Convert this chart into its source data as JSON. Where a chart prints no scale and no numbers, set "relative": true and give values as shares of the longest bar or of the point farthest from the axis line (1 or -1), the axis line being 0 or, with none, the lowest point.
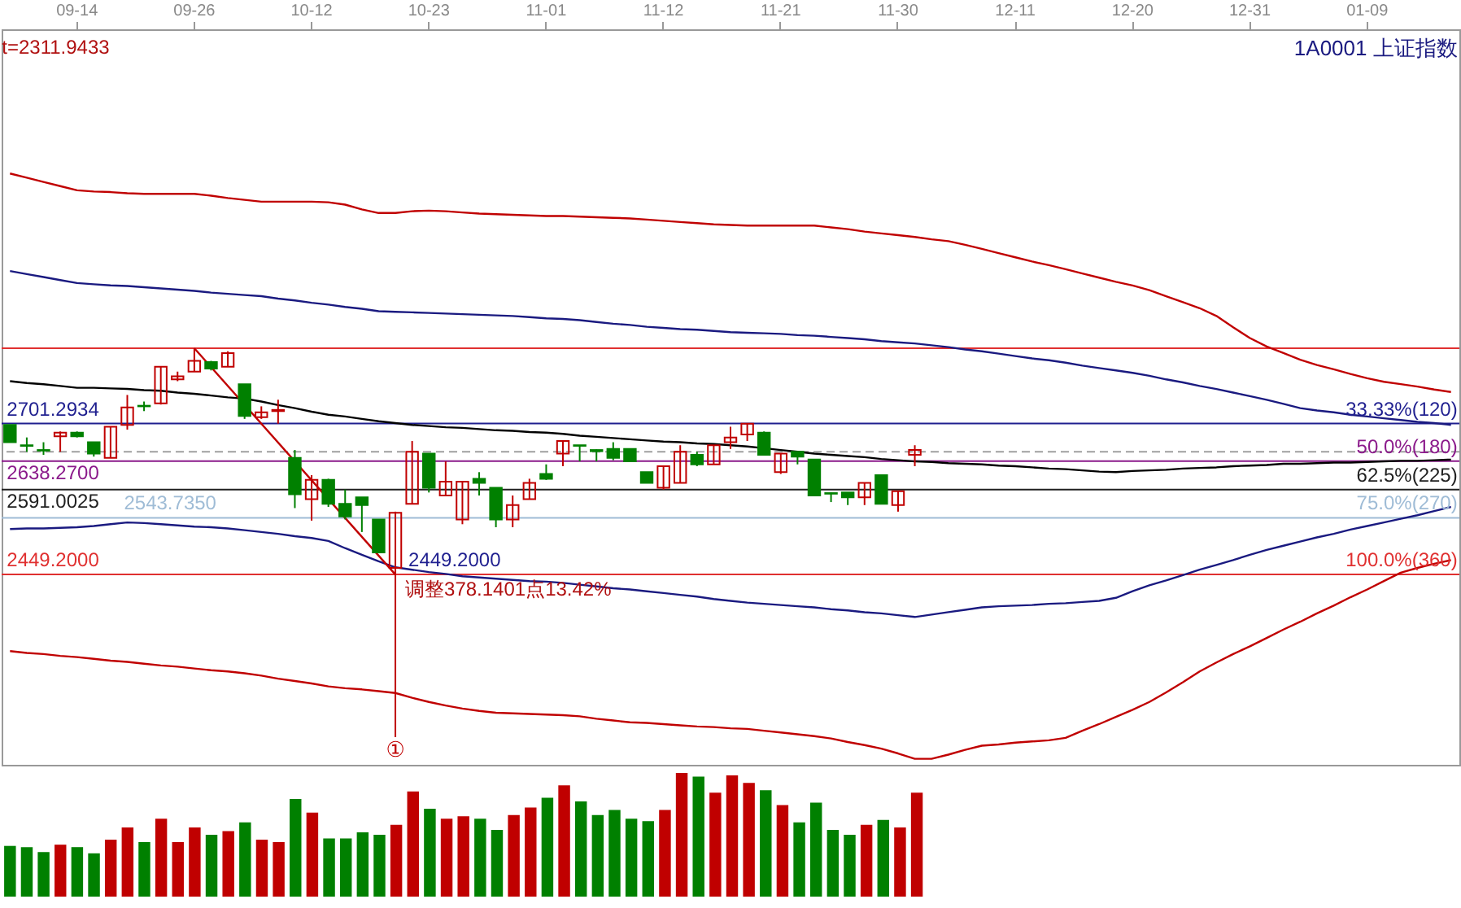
{
  "chart_data": [
    {
      "type": "candlestick",
      "title": "1A0001 上证指数",
      "categories": [
        null,
        null,
        null,
        null,
        "09-14",
        null,
        null,
        null,
        null,
        null,
        null,
        "09-26",
        null,
        null,
        null,
        null,
        null,
        null,
        "10-12",
        null,
        null,
        null,
        null,
        null,
        null,
        "10-23",
        null,
        null,
        null,
        null,
        null,
        null,
        "11-01",
        null,
        null,
        null,
        null,
        null,
        null,
        "11-12",
        null,
        null,
        null,
        null,
        null,
        null,
        "11-21",
        null,
        null,
        null,
        null,
        null,
        null,
        "11-30",
        null,
        null,
        null,
        null,
        null,
        null,
        "12-11",
        null,
        null,
        null,
        null,
        null,
        null,
        "12-20",
        null,
        null,
        null,
        null,
        null,
        null,
        "12-31",
        null,
        null,
        null,
        null,
        null,
        null,
        "01-09",
        null,
        null,
        null,
        null,
        null
      ],
      "ohlc": [
        [
          2699,
          2699,
          2670,
          2670
        ],
        [
          2665,
          2678,
          2654,
          2664
        ],
        [
          2657,
          2670,
          2649,
          2656
        ],
        [
          2680,
          2688,
          2654,
          2686
        ],
        [
          2686,
          2688,
          2678,
          2680
        ],
        [
          2670,
          2670,
          2646,
          2651
        ],
        [
          2644,
          2696,
          2644,
          2696
        ],
        [
          2699,
          2749,
          2691,
          2728
        ],
        [
          2731,
          2738,
          2722,
          2730
        ],
        [
          2735,
          2796,
          2733,
          2796
        ],
        [
          2775,
          2788,
          2772,
          2780
        ],
        [
          2788,
          2827,
          2788,
          2806
        ],
        [
          2804,
          2806,
          2790,
          2793
        ],
        [
          2796,
          2822,
          2796,
          2819
        ],
        [
          2767,
          2767,
          2709,
          2714
        ],
        [
          2712,
          2730,
          2709,
          2720
        ],
        [
          2722,
          2741,
          2701,
          2724
        ],
        [
          2644,
          2657,
          2560,
          2583
        ],
        [
          2575,
          2615,
          2539,
          2607
        ],
        [
          2607,
          2609,
          2562,
          2567
        ],
        [
          2567,
          2591,
          2541,
          2546
        ],
        [
          2578,
          2578,
          2520,
          2565
        ],
        [
          2541,
          2541,
          2486,
          2486
        ],
        [
          2460,
          2554,
          2449,
          2552
        ],
        [
          2567,
          2672,
          2567,
          2654
        ],
        [
          2651,
          2651,
          2586,
          2594
        ],
        [
          2581,
          2638,
          2581,
          2604
        ],
        [
          2541,
          2604,
          2533,
          2604
        ],
        [
          2609,
          2620,
          2581,
          2602
        ],
        [
          2594,
          2594,
          2528,
          2541
        ],
        [
          2541,
          2581,
          2528,
          2565
        ],
        [
          2575,
          2609,
          2575,
          2602
        ],
        [
          2617,
          2633,
          2607,
          2609
        ],
        [
          2651,
          2672,
          2630,
          2672
        ],
        [
          2665,
          2665,
          2638,
          2664
        ],
        [
          2657,
          2658,
          2638,
          2655
        ],
        [
          2659,
          2670,
          2640,
          2644
        ],
        [
          2659,
          2659,
          2638,
          2638
        ],
        [
          2620,
          2620,
          2602,
          2602
        ],
        [
          2594,
          2630,
          2591,
          2630
        ],
        [
          2602,
          2665,
          2602,
          2654
        ],
        [
          2649,
          2654,
          2630,
          2633
        ],
        [
          2633,
          2665,
          2633,
          2665
        ],
        [
          2670,
          2696,
          2659,
          2678
        ],
        [
          2683,
          2701,
          2672,
          2701
        ],
        [
          2686,
          2688,
          2649,
          2649
        ],
        [
          2620,
          2651,
          2617,
          2651
        ],
        [
          2654,
          2654,
          2633,
          2646
        ],
        [
          2641,
          2641,
          2581,
          2581
        ],
        [
          2585,
          2586,
          2570,
          2584
        ],
        [
          2586,
          2586,
          2565,
          2578
        ],
        [
          2578,
          2602,
          2565,
          2602
        ],
        [
          2615,
          2615,
          2567,
          2567
        ],
        [
          2565,
          2588,
          2554,
          2588
        ],
        [
          2649,
          2665,
          2630,
          2657
        ],
        null,
        null,
        null,
        null,
        null,
        null,
        null,
        null,
        null,
        null,
        null,
        null,
        null,
        null,
        null,
        null,
        null,
        null,
        null,
        null,
        null,
        null,
        null,
        null,
        null,
        null,
        null,
        null,
        null,
        null,
        null,
        null
      ],
      "colors": [
        "#008000",
        "#008000",
        "#008000",
        "#c00000",
        "#008000",
        "#008000",
        "#c00000",
        "#c00000",
        "#008000",
        "#c00000",
        "#c00000",
        "#c00000",
        "#008000",
        "#c00000",
        "#008000",
        "#c00000",
        "#c00000",
        "#008000",
        "#c00000",
        "#008000",
        "#008000",
        "#008000",
        "#008000",
        "#c00000",
        "#c00000",
        "#008000",
        "#c00000",
        "#c00000",
        "#008000",
        "#008000",
        "#c00000",
        "#c00000",
        "#008000",
        "#c00000",
        "#008000",
        "#008000",
        "#008000",
        "#008000",
        "#008000",
        "#c00000",
        "#c00000",
        "#008000",
        "#c00000",
        "#c00000",
        "#c00000",
        "#008000",
        "#c00000",
        "#008000",
        "#008000",
        "#008000",
        "#008000",
        "#c00000",
        "#008000",
        "#c00000",
        "#c00000",
        null,
        null,
        null,
        null,
        null,
        null,
        null,
        null,
        null,
        null,
        null,
        null,
        null,
        null,
        null,
        null,
        null,
        null,
        null,
        null,
        null,
        null,
        null,
        null,
        null,
        null,
        null,
        null,
        null,
        null,
        null,
        null
      ],
      "series": [
        {
          "type": "line",
          "color": "#c00000",
          "values": [
            3119,
            3112,
            3105,
            3098,
            3091,
            3089,
            3088,
            3086,
            3085,
            3085,
            3085,
            3085,
            3082,
            3078,
            3075,
            3072,
            3072,
            3072,
            3072,
            3071,
            3067,
            3059,
            3053,
            3053,
            3056,
            3057,
            3056,
            3054,
            3052,
            3051,
            3050,
            3049,
            3048,
            3048,
            3047,
            3046,
            3045,
            3044,
            3042,
            3040,
            3038,
            3036,
            3034,
            3033,
            3032,
            3032,
            3032,
            3032,
            3032,
            3029,
            3026,
            3022,
            3019,
            3016,
            3013,
            3009,
            3006,
            3000,
            2993,
            2986,
            2979,
            2972,
            2966,
            2959,
            2952,
            2945,
            2938,
            2932,
            2924,
            2914,
            2904,
            2894,
            2881,
            2862,
            2844,
            2830,
            2819,
            2808,
            2799,
            2792,
            2784,
            2777,
            2771,
            2767,
            2763,
            2758,
            2754
          ]
        },
        {
          "type": "line",
          "color": "#1a1a80",
          "values": [
            2956,
            2951,
            2946,
            2941,
            2936,
            2934,
            2932,
            2931,
            2929,
            2927,
            2925,
            2923,
            2920,
            2918,
            2916,
            2914,
            2910,
            2907,
            2903,
            2900,
            2896,
            2893,
            2889,
            2888,
            2887,
            2886,
            2885,
            2884,
            2883,
            2882,
            2881,
            2879,
            2877,
            2876,
            2874,
            2871,
            2868,
            2866,
            2863,
            2861,
            2859,
            2858,
            2856,
            2854,
            2853,
            2852,
            2851,
            2849,
            2848,
            2846,
            2844,
            2842,
            2839,
            2837,
            2835,
            2832,
            2829,
            2825,
            2822,
            2818,
            2814,
            2810,
            2807,
            2803,
            2798,
            2794,
            2790,
            2786,
            2781,
            2775,
            2770,
            2764,
            2759,
            2753,
            2747,
            2741,
            2734,
            2727,
            2723,
            2720,
            2716,
            2713,
            2710,
            2707,
            2704,
            2702,
            2699
          ]
        },
        {
          "type": "line",
          "color": "#000000",
          "values": [
            2772,
            2769,
            2767,
            2764,
            2761,
            2761,
            2760,
            2759,
            2757,
            2756,
            2753,
            2751,
            2748,
            2745,
            2743,
            2738,
            2732,
            2727,
            2721,
            2716,
            2713,
            2709,
            2705,
            2702,
            2699,
            2697,
            2695,
            2694,
            2692,
            2690,
            2689,
            2687,
            2686,
            2684,
            2681,
            2679,
            2677,
            2675,
            2673,
            2671,
            2670,
            2668,
            2667,
            2665,
            2663,
            2660,
            2657,
            2654,
            2651,
            2649,
            2647,
            2645,
            2642,
            2640,
            2638,
            2637,
            2635,
            2634,
            2633,
            2631,
            2630,
            2628,
            2626,
            2625,
            2623,
            2621,
            2620,
            2622,
            2623,
            2624,
            2626,
            2627,
            2628,
            2630,
            2631,
            2632,
            2634,
            2634,
            2635,
            2636,
            2636,
            2637,
            2638,
            2639,
            2639,
            2640,
            2641
          ]
        },
        {
          "type": "line",
          "color": "#1a1a80",
          "values": [
            2525,
            2526,
            2526,
            2527,
            2528,
            2530,
            2533,
            2536,
            2535,
            2533,
            2531,
            2529,
            2528,
            2526,
            2523,
            2520,
            2517,
            2513,
            2510,
            2505,
            2493,
            2482,
            2471,
            2461,
            2457,
            2453,
            2450,
            2446,
            2444,
            2442,
            2440,
            2438,
            2437,
            2435,
            2432,
            2429,
            2426,
            2424,
            2421,
            2418,
            2415,
            2412,
            2408,
            2405,
            2402,
            2400,
            2398,
            2396,
            2394,
            2391,
            2389,
            2386,
            2384,
            2381,
            2378,
            2382,
            2386,
            2390,
            2394,
            2396,
            2397,
            2398,
            2400,
            2401,
            2403,
            2405,
            2410,
            2421,
            2431,
            2439,
            2448,
            2457,
            2465,
            2473,
            2482,
            2490,
            2497,
            2504,
            2511,
            2517,
            2524,
            2530,
            2536,
            2542,
            2548,
            2555,
            2562
          ]
        },
        {
          "type": "line",
          "color": "#c00000",
          "values": [
            2321,
            2318,
            2316,
            2313,
            2311,
            2308,
            2305,
            2303,
            2300,
            2297,
            2295,
            2292,
            2289,
            2287,
            2284,
            2280,
            2275,
            2271,
            2267,
            2262,
            2259,
            2257,
            2254,
            2251,
            2243,
            2236,
            2230,
            2225,
            2221,
            2218,
            2217,
            2216,
            2215,
            2214,
            2212,
            2208,
            2205,
            2202,
            2201,
            2199,
            2197,
            2195,
            2194,
            2192,
            2191,
            2188,
            2185,
            2182,
            2179,
            2175,
            2169,
            2164,
            2158,
            2150,
            2141,
            2141,
            2148,
            2156,
            2163,
            2165,
            2168,
            2170,
            2172,
            2176,
            2188,
            2199,
            2211,
            2223,
            2236,
            2252,
            2269,
            2287,
            2302,
            2316,
            2329,
            2343,
            2357,
            2370,
            2384,
            2397,
            2411,
            2424,
            2438,
            2452,
            2460,
            2467,
            2473
          ]
        },
        {
          "type": "line",
          "color": "#c00000",
          "values": [
            null,
            null,
            null,
            null,
            null,
            null,
            null,
            null,
            null,
            null,
            null,
            2827,
            null,
            null,
            null,
            null,
            null,
            null,
            null,
            null,
            null,
            null,
            null,
            2449,
            null,
            null,
            null,
            null,
            null,
            null,
            null,
            null,
            null,
            null,
            null,
            null,
            null,
            null,
            null,
            null,
            null,
            null,
            null,
            null,
            null,
            null,
            null,
            null,
            null,
            null,
            null,
            null,
            null,
            null,
            null,
            null,
            null,
            null,
            null,
            null,
            null,
            null,
            null,
            null,
            null,
            null,
            null,
            null,
            null,
            null,
            null,
            null,
            null,
            null,
            null,
            null,
            null,
            null,
            null,
            null,
            null,
            null,
            null,
            null,
            null,
            null,
            null
          ]
        }
      ],
      "ylim": [
        2131,
        3360
      ],
      "tick_labels": "x",
      "ref_lines": [
        {
          "axis": "y",
          "value": 2827,
          "color": "#e03030"
        },
        {
          "axis": "y",
          "value": 2701.2934,
          "label": "2701.2934",
          "color": "#1f1f8f"
        },
        {
          "axis": "y",
          "value": 2654,
          "color": "#a0a0a0",
          "line_style": "dashed"
        },
        {
          "axis": "y",
          "value": 2638.27,
          "label": "2638.2700",
          "color": "#8b1a8b"
        },
        {
          "axis": "y",
          "value": 2591.0025,
          "label": "2591.0025",
          "color": "#202020"
        },
        {
          "axis": "y",
          "value": 2543.735,
          "label": "2543.7350",
          "color": "#9fbcd6"
        },
        {
          "axis": "y",
          "value": 2449.2,
          "label": "2449.2000",
          "color": "#e03030"
        }
      ],
      "annotations": [
        "t=2311.9433",
        "调整378.1401点13.42%",
        {
          "text": "33.33%(120)",
          "y": 2701.2934
        },
        {
          "text": "50.0%(180)",
          "y": 2638.27
        },
        {
          "text": "62.5%(225)",
          "y": 2591.0025
        },
        {
          "text": "75.0%(270)",
          "y": 2543.735
        },
        {
          "text": "100.0%(360)",
          "y": 2449.2
        },
        {
          "text": "2449.2000",
          "y": 2449
        },
        {
          "text": "①",
          "y": 2449
        }
      ]
    },
    {
      "type": "bar",
      "relative": true,
      "tick_labels": false,
      "categories": [
        null,
        null,
        null,
        null,
        null,
        null,
        null,
        null,
        null,
        null,
        null,
        null,
        null,
        null,
        null,
        null,
        null,
        null,
        null,
        null,
        null,
        null,
        null,
        null,
        null,
        null,
        null,
        null,
        null,
        null,
        null,
        null,
        null,
        null,
        null,
        null,
        null,
        null,
        null,
        null,
        null,
        null,
        null,
        null,
        null,
        null,
        null,
        null,
        null,
        null,
        null,
        null,
        null,
        null,
        null
      ],
      "values": [
        0.41,
        0.4,
        0.36,
        0.42,
        0.4,
        0.35,
        0.46,
        0.56,
        0.44,
        0.63,
        0.44,
        0.56,
        0.5,
        0.53,
        0.6,
        0.46,
        0.44,
        0.79,
        0.68,
        0.47,
        0.47,
        0.52,
        0.5,
        0.58,
        0.85,
        0.71,
        0.63,
        0.65,
        0.63,
        0.54,
        0.66,
        0.72,
        0.8,
        0.9,
        0.77,
        0.66,
        0.7,
        0.63,
        0.61,
        0.7,
        1,
        0.97,
        0.84,
        0.98,
        0.92,
        0.86,
        0.74,
        0.6,
        0.76,
        0.54,
        0.5,
        0.58,
        0.62,
        0.56,
        0.84
      ],
      "colors": [
        "#008000",
        "#008000",
        "#008000",
        "#c00000",
        "#008000",
        "#008000",
        "#c00000",
        "#c00000",
        "#008000",
        "#c00000",
        "#c00000",
        "#c00000",
        "#008000",
        "#c00000",
        "#008000",
        "#c00000",
        "#c00000",
        "#008000",
        "#c00000",
        "#008000",
        "#008000",
        "#008000",
        "#008000",
        "#c00000",
        "#c00000",
        "#008000",
        "#c00000",
        "#c00000",
        "#008000",
        "#008000",
        "#c00000",
        "#c00000",
        "#008000",
        "#c00000",
        "#008000",
        "#008000",
        "#008000",
        "#008000",
        "#008000",
        "#c00000",
        "#c00000",
        "#008000",
        "#c00000",
        "#c00000",
        "#c00000",
        "#008000",
        "#c00000",
        "#008000",
        "#008000",
        "#008000",
        "#008000",
        "#c00000",
        "#008000",
        "#c00000",
        "#c00000"
      ]
    }
  ]
}
